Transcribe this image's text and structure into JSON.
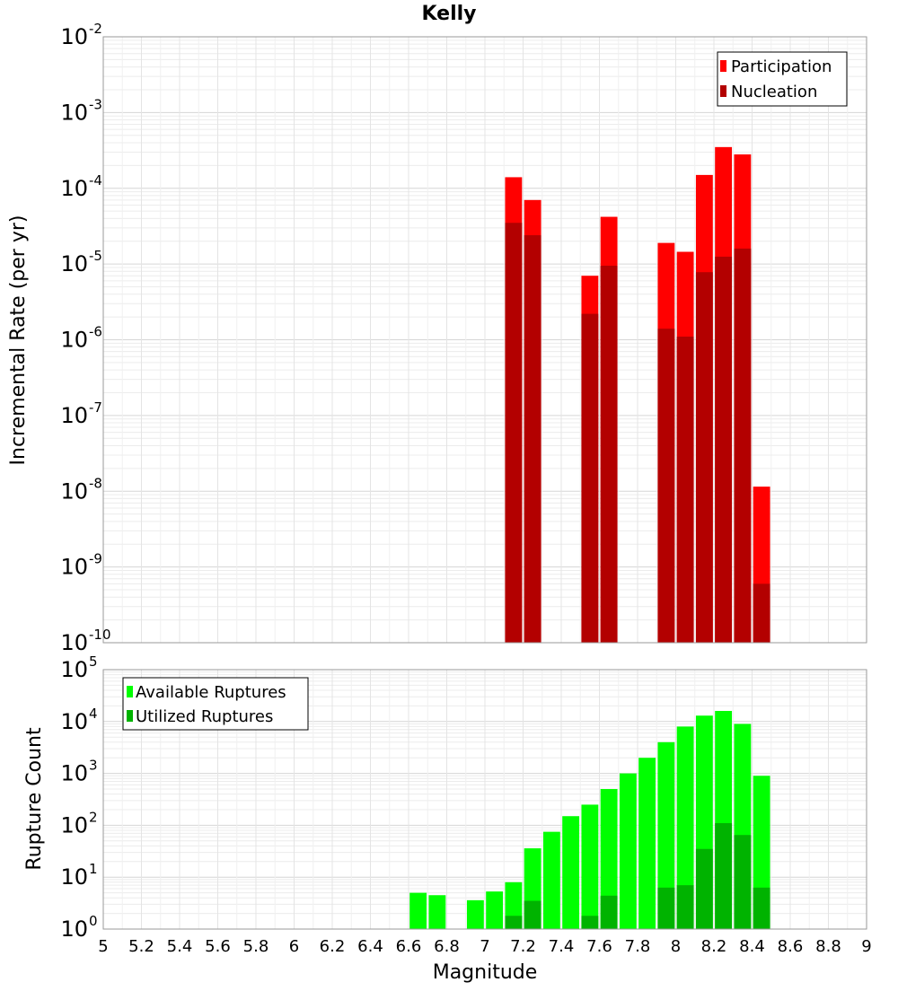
{
  "chart_data": [
    {
      "type": "bar",
      "id": "rate-panel",
      "title": "Kelly",
      "xlabel": "Magnitude",
      "ylabel": "Incremental Rate (per yr)",
      "yscale": "log",
      "ylim_exponents": [
        -10,
        -2
      ],
      "xlim": [
        5,
        9
      ],
      "bin_width": 0.1,
      "grid": true,
      "legend_position": "top-right",
      "series": [
        {
          "name": "Participation",
          "color": "#ff0000",
          "points": [
            {
              "x": 7.15,
              "y": 0.00014
            },
            {
              "x": 7.25,
              "y": 7e-05
            },
            {
              "x": 7.55,
              "y": 7e-06
            },
            {
              "x": 7.65,
              "y": 4.2e-05
            },
            {
              "x": 7.95,
              "y": 1.9e-05
            },
            {
              "x": 8.05,
              "y": 1.45e-05
            },
            {
              "x": 8.15,
              "y": 0.00015
            },
            {
              "x": 8.25,
              "y": 0.00035
            },
            {
              "x": 8.35,
              "y": 0.00028
            },
            {
              "x": 8.45,
              "y": 1.15e-08
            }
          ]
        },
        {
          "name": "Nucleation",
          "color": "#b30000",
          "points": [
            {
              "x": 7.15,
              "y": 3.5e-05
            },
            {
              "x": 7.25,
              "y": 2.4e-05
            },
            {
              "x": 7.55,
              "y": 2.2e-06
            },
            {
              "x": 7.65,
              "y": 9.5e-06
            },
            {
              "x": 7.95,
              "y": 1.4e-06
            },
            {
              "x": 8.05,
              "y": 1.1e-06
            },
            {
              "x": 8.15,
              "y": 7.8e-06
            },
            {
              "x": 8.25,
              "y": 1.25e-05
            },
            {
              "x": 8.35,
              "y": 1.6e-05
            },
            {
              "x": 8.45,
              "y": 6e-10
            }
          ]
        }
      ]
    },
    {
      "type": "bar",
      "id": "count-panel",
      "xlabel": "Magnitude",
      "ylabel": "Rupture Count",
      "yscale": "log",
      "ylim_exponents": [
        0,
        5
      ],
      "xlim": [
        5,
        9
      ],
      "bin_width": 0.1,
      "grid": true,
      "legend_position": "top-left",
      "series": [
        {
          "name": "Available Ruptures",
          "color": "#00ff00",
          "points": [
            {
              "x": 6.65,
              "y": 5
            },
            {
              "x": 6.75,
              "y": 4.5
            },
            {
              "x": 6.95,
              "y": 3.6
            },
            {
              "x": 7.05,
              "y": 5.3
            },
            {
              "x": 7.15,
              "y": 8
            },
            {
              "x": 7.25,
              "y": 36
            },
            {
              "x": 7.35,
              "y": 75
            },
            {
              "x": 7.45,
              "y": 150
            },
            {
              "x": 7.55,
              "y": 250
            },
            {
              "x": 7.65,
              "y": 500
            },
            {
              "x": 7.75,
              "y": 1000
            },
            {
              "x": 7.85,
              "y": 2000
            },
            {
              "x": 7.95,
              "y": 4000
            },
            {
              "x": 8.05,
              "y": 8000
            },
            {
              "x": 8.15,
              "y": 13000
            },
            {
              "x": 8.25,
              "y": 16000
            },
            {
              "x": 8.35,
              "y": 9000
            },
            {
              "x": 8.45,
              "y": 900
            }
          ]
        },
        {
          "name": "Utilized Ruptures",
          "color": "#00b300",
          "points": [
            {
              "x": 7.15,
              "y": 1.8
            },
            {
              "x": 7.25,
              "y": 3.5
            },
            {
              "x": 7.55,
              "y": 1.8
            },
            {
              "x": 7.65,
              "y": 4.4
            },
            {
              "x": 7.95,
              "y": 6.3
            },
            {
              "x": 8.05,
              "y": 7
            },
            {
              "x": 8.15,
              "y": 35
            },
            {
              "x": 8.25,
              "y": 110
            },
            {
              "x": 8.35,
              "y": 65
            },
            {
              "x": 8.45,
              "y": 6.3
            }
          ]
        }
      ]
    }
  ],
  "x_ticks": [
    "5",
    "5.2",
    "5.4",
    "5.6",
    "5.8",
    "6",
    "6.2",
    "6.4",
    "6.6",
    "6.8",
    "7",
    "7.2",
    "7.4",
    "7.6",
    "7.8",
    "8",
    "8.2",
    "8.4",
    "8.6",
    "8.8",
    "9"
  ],
  "decade_base": "10"
}
